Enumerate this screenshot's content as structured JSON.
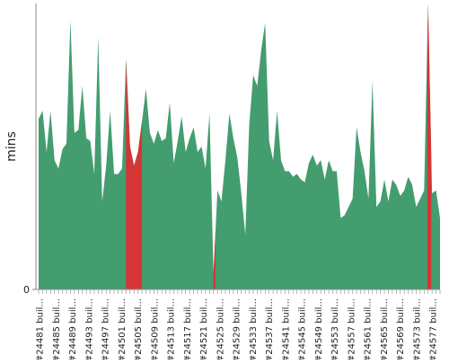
{
  "chart_data": {
    "type": "area",
    "ylabel": "mins",
    "ylim": [
      0,
      52
    ],
    "y_ticks": [
      {
        "value": 0,
        "label": "0"
      }
    ],
    "x_tick_labels": [
      "#24481 buil...",
      "#24485 buil...",
      "#24489 buil...",
      "#24493 buil...",
      "#24497 buil...",
      "#24501 buil...",
      "#24505 buil...",
      "#24509 buil...",
      "#24513 buil...",
      "#24517 buil...",
      "#24521 buil...",
      "#24525 buil...",
      "#24529 buil...",
      "#24533 buil...",
      "#24537 buil...",
      "#24541 buil...",
      "#24545 buil...",
      "#24549 buil...",
      "#24553 buil...",
      "#24557 buil...",
      "#24561 buil...",
      "#24565 buil...",
      "#24569 buil...",
      "#24573 buil...",
      "#24577 buil..."
    ],
    "colors": {
      "success": "#449d6f",
      "failure": "#d53535",
      "axis": "#888888",
      "text": "#222222"
    },
    "values": [
      31.0,
      32.5,
      25.0,
      32.5,
      23.5,
      22.0,
      25.5,
      26.5,
      49.0,
      28.5,
      29.0,
      37.0,
      27.5,
      27.0,
      21.0,
      46.0,
      16.0,
      22.5,
      32.5,
      21.0,
      21.0,
      22.0,
      42.0,
      26.0,
      22.5,
      25.0,
      30.5,
      36.5,
      28.5,
      26.5,
      29.0,
      27.0,
      27.5,
      34.0,
      23.0,
      27.0,
      31.5,
      25.0,
      27.5,
      29.5,
      25.0,
      26.0,
      22.0,
      32.0,
      3.0,
      18.0,
      16.0,
      23.5,
      32.0,
      27.5,
      24.0,
      17.5,
      10.0,
      30.0,
      39.0,
      37.0,
      43.5,
      48.5,
      27.0,
      23.5,
      32.5,
      23.5,
      21.5,
      21.5,
      20.5,
      21.0,
      20.0,
      19.5,
      23.0,
      24.5,
      22.5,
      23.5,
      20.0,
      23.5,
      21.5,
      21.5,
      13.0,
      13.5,
      15.0,
      16.5,
      29.5,
      25.0,
      21.5,
      16.5,
      38.0,
      15.0,
      16.0,
      20.0,
      16.0,
      20.0,
      19.0,
      17.0,
      18.0,
      20.5,
      19.0,
      15.0,
      16.5,
      18.0,
      52.0,
      17.5,
      18.0,
      13.0
    ],
    "failure_ranges": [
      {
        "from": 22,
        "to": 26
      },
      {
        "from": 44,
        "to": 44.5
      },
      {
        "from": 97.8,
        "to": 98.8
      }
    ]
  }
}
